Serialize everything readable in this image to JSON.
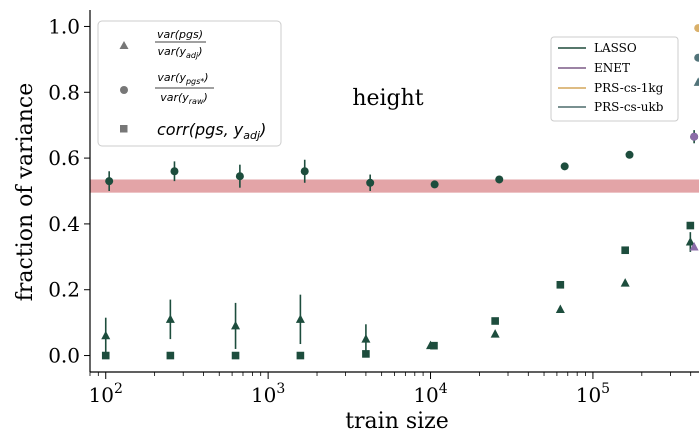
{
  "chart_data": {
    "type": "scatter",
    "title": "height",
    "xlabel": "train size",
    "ylabel": "fraction of variance",
    "xscale": "log",
    "xlim": [
      80,
      450000
    ],
    "ylim": [
      -0.05,
      1.05
    ],
    "x_ticks": [
      {
        "value": 100,
        "base": "10",
        "exp": "2"
      },
      {
        "value": 1000,
        "base": "10",
        "exp": "3"
      },
      {
        "value": 10000,
        "base": "10",
        "exp": "4"
      },
      {
        "value": 100000,
        "base": "10",
        "exp": "5"
      }
    ],
    "y_ticks": [
      {
        "value": 0.0,
        "label": "0.0"
      },
      {
        "value": 0.2,
        "label": "0.2"
      },
      {
        "value": 0.4,
        "label": "0.4"
      },
      {
        "value": 0.6,
        "label": "0.6"
      },
      {
        "value": 0.8,
        "label": "0.8"
      },
      {
        "value": 1.0,
        "label": "1.0"
      }
    ],
    "grid": false,
    "band": {
      "y0": 0.495,
      "y1": 0.535,
      "color": "#d9868a"
    },
    "marker_legend": {
      "placement": "top-left",
      "entries": [
        {
          "marker": "triangle",
          "num": "var(pgs)",
          "den": "var(y",
          "den_sub": "adj",
          "den_close": ")"
        },
        {
          "marker": "circle",
          "num": "var(y",
          "num_sub": "pgs*",
          "num_close": ")",
          "den": "var(y",
          "den_sub": "raw",
          "den_close": ")"
        },
        {
          "marker": "square",
          "label": "corr(pgs, y",
          "label_sub": "adj",
          "label_close": ")"
        }
      ]
    },
    "method_legend": {
      "placement": "top-right",
      "entries": [
        {
          "name": "LASSO",
          "color": "#1f4a3a"
        },
        {
          "name": "ENET",
          "color": "#7b5a86"
        },
        {
          "name": "PRS-cs-1kg",
          "color": "#d4a65a"
        },
        {
          "name": "PRS-cs-ukb",
          "color": "#4d6b6b"
        }
      ]
    },
    "colors": {
      "lasso": "#1d4d3d",
      "enet": "#8b6ca8",
      "prs1kg": "#d9b06a",
      "prsukb": "#52747a"
    },
    "series": [
      {
        "name": "var(pgs)/var(y_adj)",
        "marker": "triangle",
        "color": "#1d4d3d",
        "x": [
          100,
          250,
          630,
          1580,
          4000,
          10000,
          25000,
          63000,
          158000,
          398000
        ],
        "y": [
          0.06,
          0.11,
          0.09,
          0.11,
          0.05,
          0.03,
          0.065,
          0.14,
          0.22,
          0.345
        ],
        "err": [
          0.055,
          0.06,
          0.07,
          0.075,
          0.045,
          0.01,
          0.005,
          0.005,
          0.005,
          0.03
        ]
      },
      {
        "name": "var(y_pgs*)/var(y_raw)",
        "marker": "circle",
        "color": "#1d4d3d",
        "x": [
          105,
          265,
          670,
          1680,
          4250,
          10600,
          26500,
          67000,
          168000,
          420000
        ],
        "y": [
          0.53,
          0.56,
          0.545,
          0.56,
          0.525,
          0.52,
          0.535,
          0.575,
          0.61,
          0.665
        ],
        "err": [
          0.03,
          0.03,
          0.035,
          0.035,
          0.025,
          0.01,
          0.005,
          0.005,
          0.005,
          0.02
        ]
      },
      {
        "name": "corr(pgs, y_adj)",
        "marker": "square",
        "color": "#1d4d3d",
        "x": [
          100,
          250,
          630,
          1580,
          4000,
          10500,
          25000,
          63000,
          158000,
          398000
        ],
        "y": [
          0.0,
          0.0,
          0.0,
          0.0,
          0.005,
          0.03,
          0.105,
          0.215,
          0.32,
          0.395
        ],
        "err": [
          0,
          0,
          0,
          0,
          0,
          0,
          0,
          0,
          0,
          0
        ]
      }
    ],
    "extra_points": [
      {
        "series": "ENET",
        "marker": "triangle",
        "x": 420000,
        "y": 0.33,
        "color": "#8b6ca8"
      },
      {
        "series": "ENET",
        "marker": "circle",
        "x": 420000,
        "y": 0.665,
        "color": "#8b6ca8"
      },
      {
        "series": "PRS-cs-1kg",
        "marker": "circle",
        "x": 445000,
        "y": 0.995,
        "color": "#d9b06a"
      },
      {
        "series": "PRS-cs-ukb",
        "marker": "circle",
        "x": 445000,
        "y": 0.905,
        "color": "#52747a"
      },
      {
        "series": "PRS-cs-ukb",
        "marker": "triangle",
        "x": 445000,
        "y": 0.83,
        "color": "#52747a"
      }
    ]
  }
}
